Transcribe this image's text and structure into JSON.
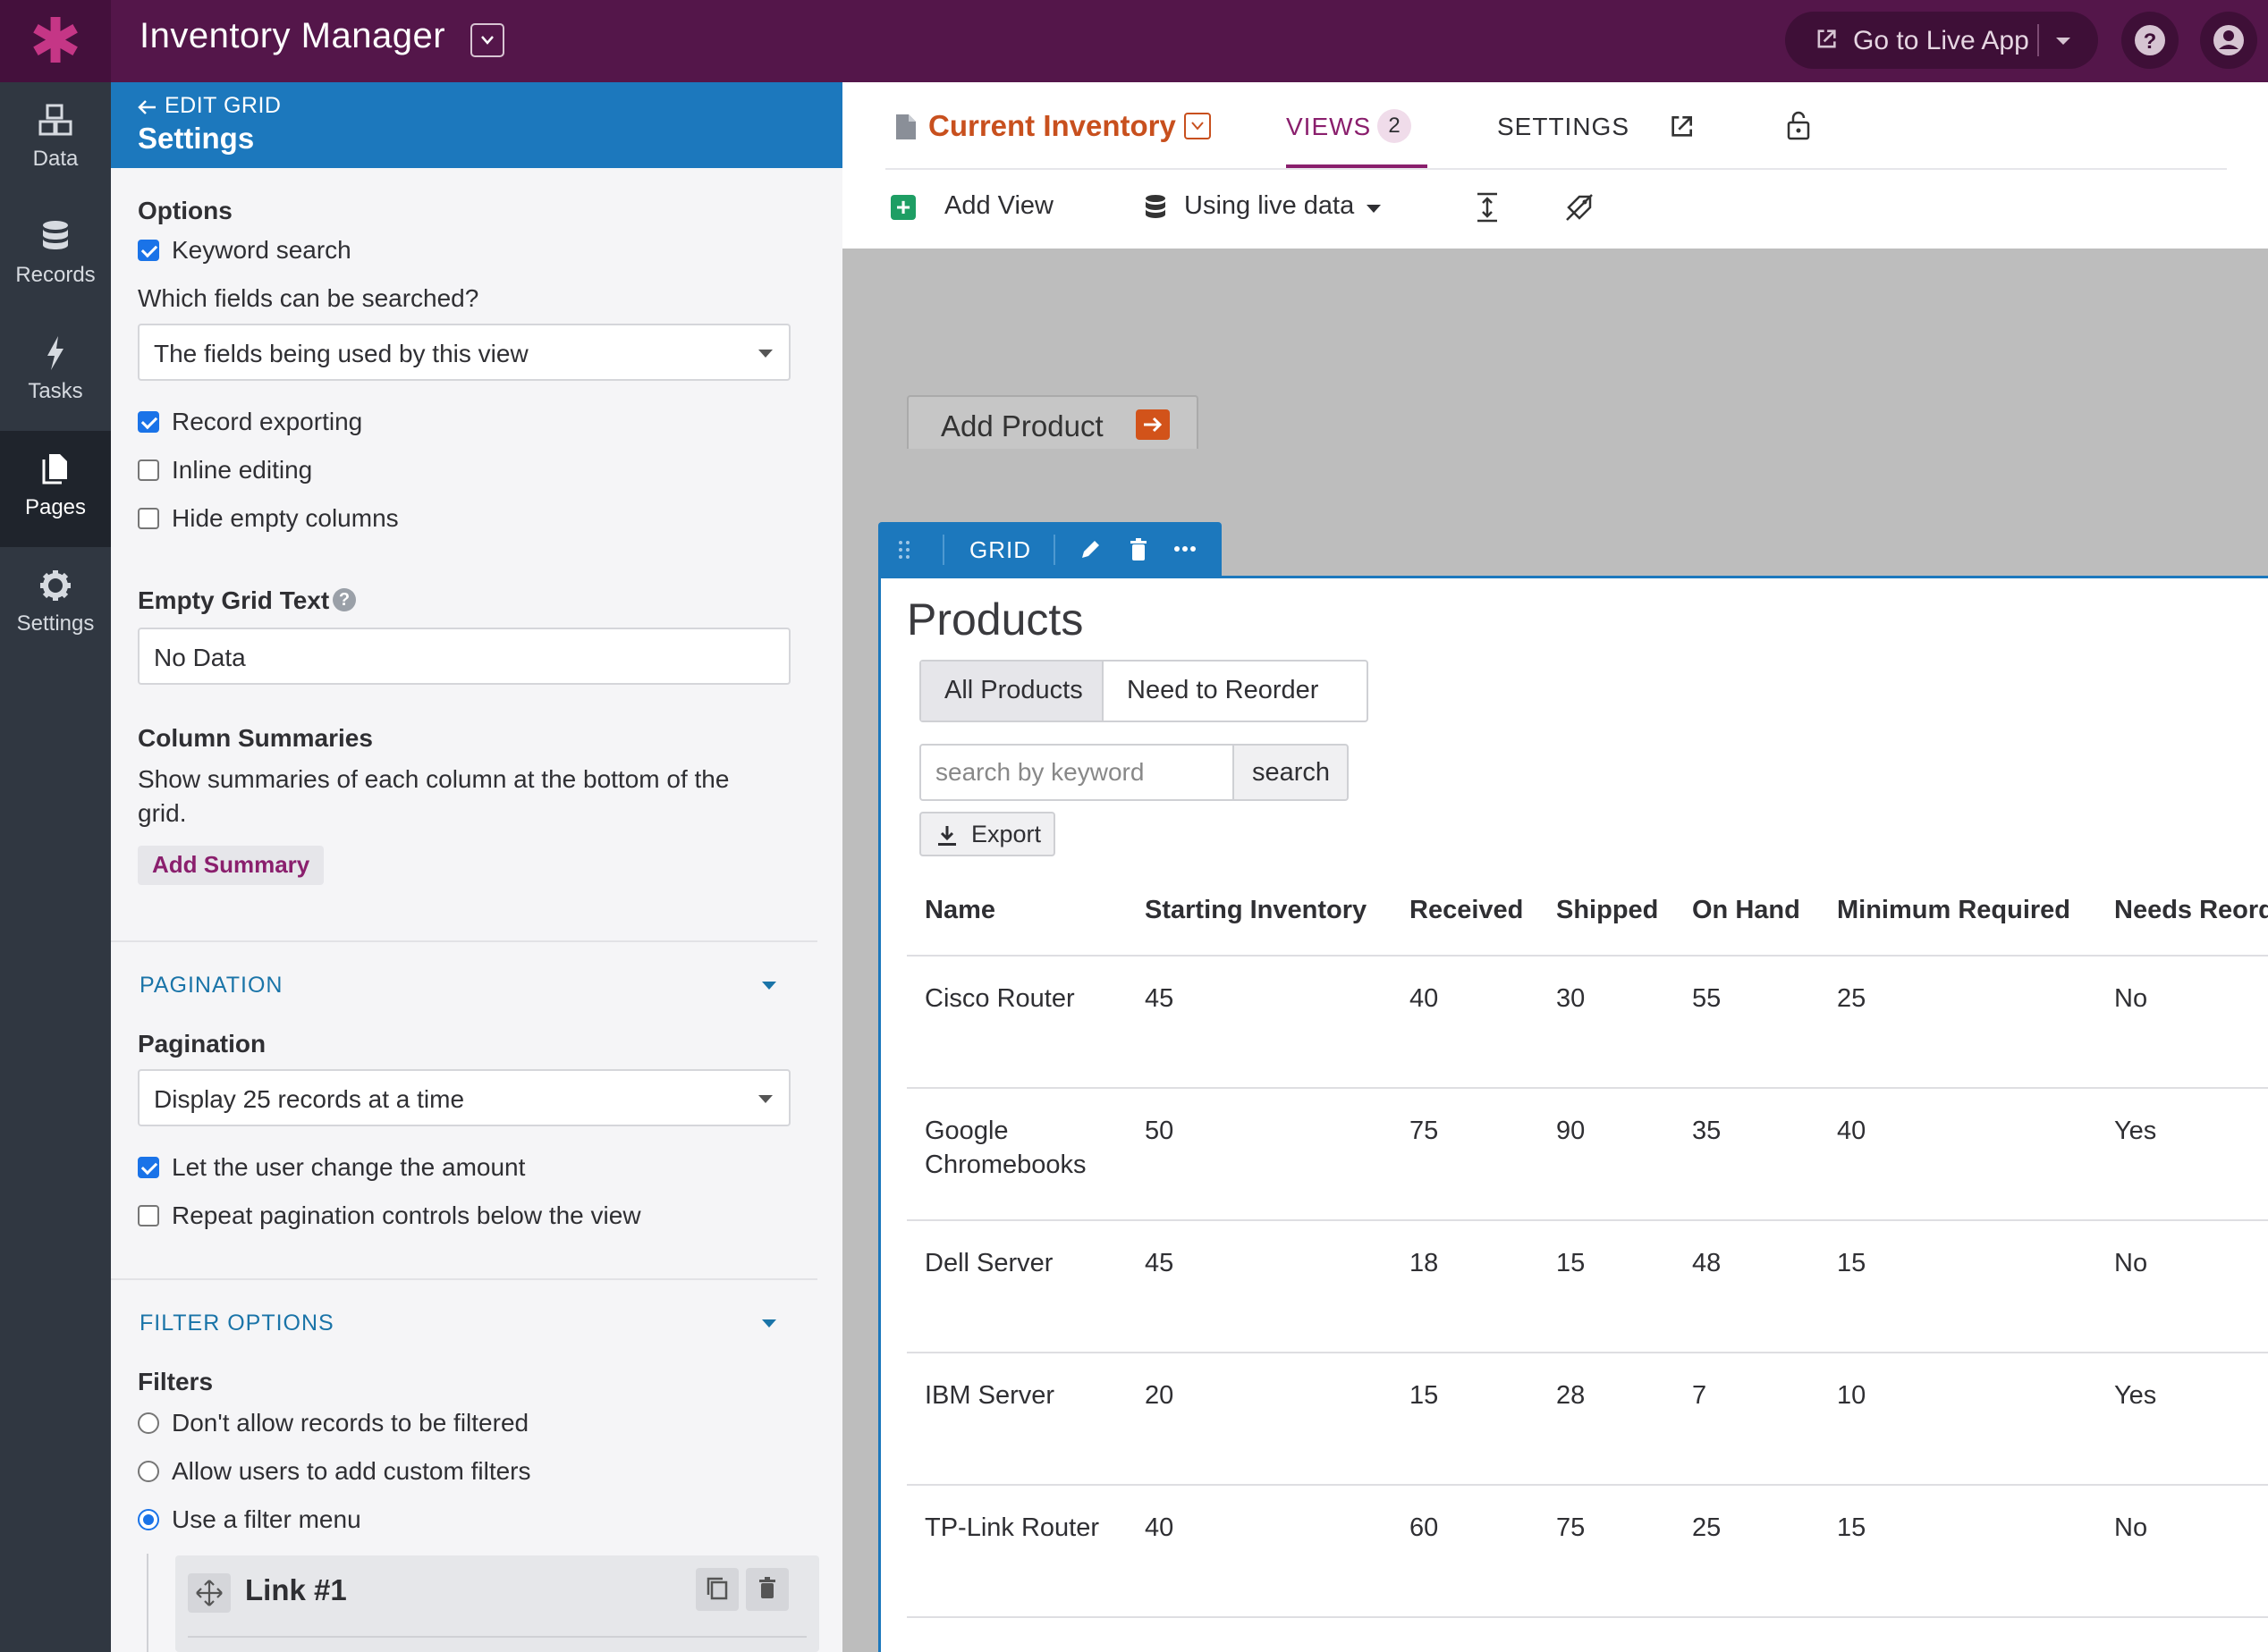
{
  "app": {
    "title": "Inventory Manager",
    "live_app_label": "Go to Live App",
    "accent": "#54164a",
    "brand_icon": "asterisk-logo-icon"
  },
  "nav": {
    "items": [
      {
        "label": "Data",
        "icon": "data-cubes-icon"
      },
      {
        "label": "Records",
        "icon": "database-icon"
      },
      {
        "label": "Tasks",
        "icon": "lightning-icon"
      },
      {
        "label": "Pages",
        "icon": "pages-icon",
        "active": true
      },
      {
        "label": "Settings",
        "icon": "gear-icon"
      }
    ]
  },
  "panel": {
    "back_label": "EDIT GRID",
    "title": "Settings",
    "options_heading": "Options",
    "keyword_search": {
      "label": "Keyword search",
      "checked": true
    },
    "search_fields_label": "Which fields can be searched?",
    "search_fields_value": "The fields being used by this view",
    "record_exporting": {
      "label": "Record exporting",
      "checked": true
    },
    "inline_editing": {
      "label": "Inline editing",
      "checked": false
    },
    "hide_empty": {
      "label": "Hide empty columns",
      "checked": false
    },
    "empty_text_heading": "Empty Grid Text",
    "empty_text_value": "No Data",
    "summaries_heading": "Column Summaries",
    "summaries_desc_1": "Show summaries of each column at the bottom of the",
    "summaries_desc_2": "grid.",
    "add_summary": "Add Summary",
    "pagination_section": "PAGINATION",
    "pagination_heading": "Pagination",
    "pagination_value": "Display 25 records at a time",
    "let_user_change": {
      "label": "Let the user change the amount",
      "checked": true
    },
    "repeat_pagination": {
      "label": "Repeat pagination controls below the view",
      "checked": false
    },
    "filter_section": "FILTER OPTIONS",
    "filters_heading": "Filters",
    "filter_opt_none": "Don't allow records to be filtered",
    "filter_opt_custom": "Allow users to add custom filters",
    "filter_opt_menu": "Use a filter menu",
    "filter_selected": "Use a filter menu",
    "link_name": "Link #1"
  },
  "builder": {
    "page_name": "Current Inventory",
    "tab_views": "VIEWS",
    "views_count": "2",
    "tab_settings": "SETTINGS",
    "add_view": "Add View",
    "live_data": "Using live data",
    "add_product": "Add Product",
    "view_type": "GRID",
    "grid_title": "Products",
    "filter_tabs": [
      "All Products",
      "Need to Reorder"
    ],
    "search_placeholder": "search by keyword",
    "search_button": "search",
    "export_button": "Export"
  },
  "table": {
    "columns": [
      "Name",
      "Starting Inventory",
      "Received",
      "Shipped",
      "On Hand",
      "Minimum Required",
      "Needs Reorder"
    ],
    "rows": [
      [
        "Cisco Router",
        "45",
        "40",
        "30",
        "55",
        "25",
        "No"
      ],
      [
        "Google Chromebooks",
        "50",
        "75",
        "90",
        "35",
        "40",
        "Yes"
      ],
      [
        "Dell Server",
        "45",
        "18",
        "15",
        "48",
        "15",
        "No"
      ],
      [
        "IBM Server",
        "20",
        "15",
        "28",
        "7",
        "10",
        "Yes"
      ],
      [
        "TP-Link Router",
        "40",
        "60",
        "75",
        "25",
        "15",
        "No"
      ]
    ]
  }
}
